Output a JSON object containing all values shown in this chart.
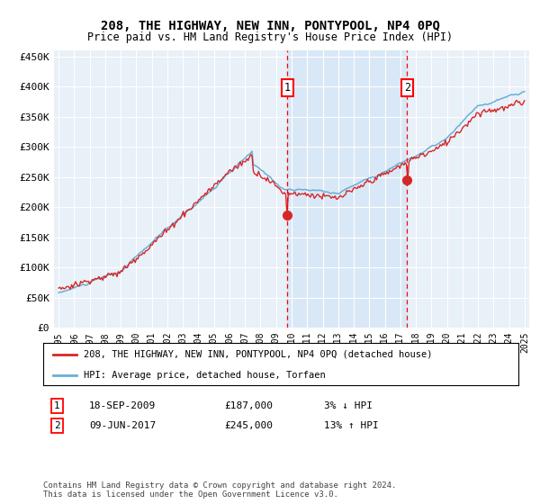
{
  "title": "208, THE HIGHWAY, NEW INN, PONTYPOOL, NP4 0PQ",
  "subtitle": "Price paid vs. HM Land Registry's House Price Index (HPI)",
  "ylabel_ticks": [
    "£0",
    "£50K",
    "£100K",
    "£150K",
    "£200K",
    "£250K",
    "£300K",
    "£350K",
    "£400K",
    "£450K"
  ],
  "ytick_vals": [
    0,
    50000,
    100000,
    150000,
    200000,
    250000,
    300000,
    350000,
    400000,
    450000
  ],
  "ylim": [
    0,
    460000
  ],
  "xlim_start": 1994.7,
  "xlim_end": 2025.3,
  "xtick_years": [
    1995,
    1996,
    1997,
    1998,
    1999,
    2000,
    2001,
    2002,
    2003,
    2004,
    2005,
    2006,
    2007,
    2008,
    2009,
    2010,
    2011,
    2012,
    2013,
    2014,
    2015,
    2016,
    2017,
    2018,
    2019,
    2020,
    2021,
    2022,
    2023,
    2024,
    2025
  ],
  "hpi_color": "#6baed6",
  "price_color": "#d62728",
  "background_color": "#e8f0f8",
  "shade_color": "#d0e4f5",
  "grid_color": "#ffffff",
  "transaction1_x": 2009.72,
  "transaction1_y": 187000,
  "transaction1_label": "1",
  "transaction2_x": 2017.44,
  "transaction2_y": 245000,
  "transaction2_label": "2",
  "legend_line1": "208, THE HIGHWAY, NEW INN, PONTYPOOL, NP4 0PQ (detached house)",
  "legend_line2": "HPI: Average price, detached house, Torfaen",
  "table_row1": [
    "1",
    "18-SEP-2009",
    "£187,000",
    "3% ↓ HPI"
  ],
  "table_row2": [
    "2",
    "09-JUN-2017",
    "£245,000",
    "13% ↑ HPI"
  ],
  "footer": "Contains HM Land Registry data © Crown copyright and database right 2024.\nThis data is licensed under the Open Government Licence v3.0.",
  "title_fontsize": 10,
  "subtitle_fontsize": 9
}
